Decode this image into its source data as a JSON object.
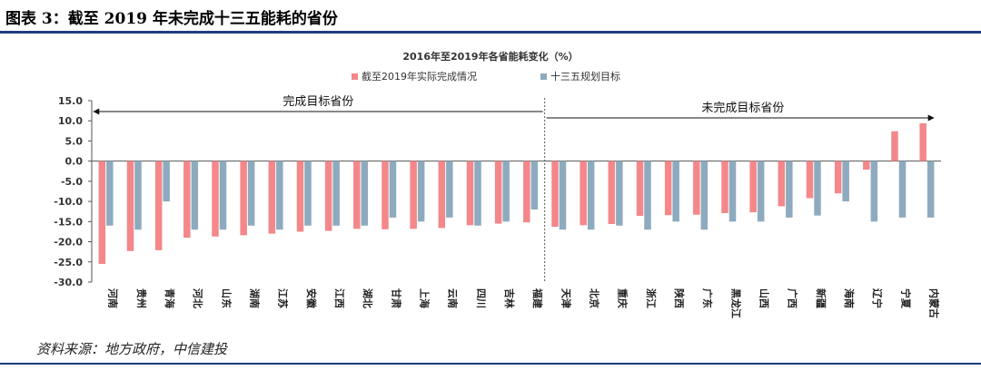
{
  "figure": {
    "title": "图表 3：截至 2019 年未完成十三五能耗的省份",
    "source": "资料来源：地方政府，中信建投"
  },
  "colors": {
    "actual": "#f4878a",
    "target": "#8eaabe",
    "rule": "#1f3d7a",
    "axis": "#555555"
  },
  "chart_data": {
    "type": "bar",
    "title": "2016年至2019年各省能耗变化（%）",
    "xlabel": "",
    "ylabel": "",
    "ylim": [
      -30,
      15
    ],
    "yticks": [
      15,
      10,
      5,
      0,
      -5,
      -10,
      -15,
      -20,
      -25,
      -30
    ],
    "ytick_labels": [
      "15.0",
      "10.0",
      "5.0",
      "0.0",
      "-5.0",
      "-10.0",
      "-15.0",
      "-20.0",
      "-25.0",
      "-30.0"
    ],
    "grid": false,
    "legend_position": "top-center",
    "categories": [
      "河南",
      "贵州",
      "青海",
      "河北",
      "山东",
      "湖南",
      "江苏",
      "安徽",
      "江西",
      "湖北",
      "甘肃",
      "上海",
      "云南",
      "四川",
      "吉林",
      "福建",
      "天津",
      "北京",
      "重庆",
      "浙江",
      "陕西",
      "广东",
      "黑龙江",
      "山西",
      "广西",
      "新疆",
      "海南",
      "辽宁",
      "宁夏",
      "内蒙古"
    ],
    "series": [
      {
        "name": "截至2019年实际完成情况",
        "values": [
          -25.5,
          -22.3,
          -22.1,
          -19.0,
          -18.7,
          -18.4,
          -18.0,
          -17.5,
          -17.3,
          -16.8,
          -16.9,
          -16.8,
          -16.6,
          -15.9,
          -15.5,
          -15.2,
          -16.3,
          -15.9,
          -15.6,
          -13.6,
          -13.4,
          -13.3,
          -12.9,
          -12.7,
          -11.2,
          -9.2,
          -8.0,
          -2.1,
          7.4,
          9.4
        ]
      },
      {
        "name": "十三五规划目标",
        "values": [
          -16,
          -17,
          -10,
          -17,
          -17,
          -16,
          -17,
          -16,
          -16,
          -16,
          -14,
          -15,
          -14,
          -16,
          -15,
          -12,
          -17,
          -17,
          -16,
          -17,
          -15,
          -17,
          -15,
          -15,
          -14,
          -13.5,
          -10,
          -15,
          -14,
          -14
        ]
      }
    ],
    "annotations": {
      "completed": "完成目标省份",
      "not_completed": "未完成目标省份",
      "divider_after_index": 15
    }
  }
}
